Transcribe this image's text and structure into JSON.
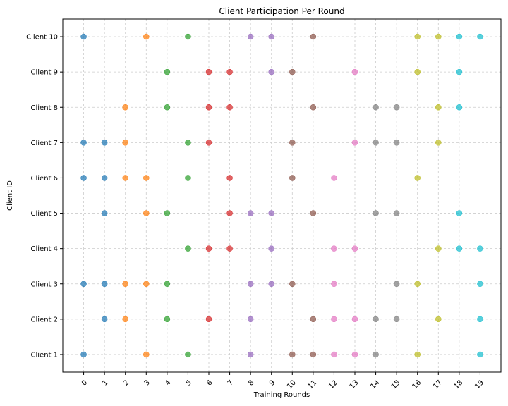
{
  "chart_data": {
    "type": "scatter",
    "title": "Client Participation Per Round",
    "xlabel": "Training Rounds",
    "ylabel": "Client ID",
    "x_ticks": [
      "0",
      "1",
      "2",
      "3",
      "4",
      "5",
      "6",
      "7",
      "8",
      "9",
      "10",
      "11",
      "12",
      "13",
      "14",
      "15",
      "16",
      "17",
      "18",
      "19"
    ],
    "y_ticks": [
      "Client 1",
      "Client 2",
      "Client 3",
      "Client 4",
      "Client 5",
      "Client 6",
      "Client 7",
      "Client 8",
      "Client 9",
      "Client 10"
    ],
    "xlim": [
      -1,
      20
    ],
    "ylim": [
      0.5,
      10.5
    ],
    "grid": true,
    "round_colors": [
      "#1f77b4",
      "#1f77b4",
      "#ff7f0e",
      "#ff7f0e",
      "#2ca02c",
      "#2ca02c",
      "#d62728",
      "#d62728",
      "#9467bd",
      "#9467bd",
      "#8c564b",
      "#8c564b",
      "#e377c2",
      "#e377c2",
      "#7f7f7f",
      "#7f7f7f",
      "#bcbd22",
      "#bcbd22",
      "#17becf",
      "#17becf"
    ],
    "participation": [
      {
        "client": 10,
        "rounds": [
          0,
          3,
          5,
          8,
          9,
          11,
          16,
          17,
          18,
          19
        ]
      },
      {
        "client": 9,
        "rounds": [
          4,
          6,
          7,
          9,
          10,
          13,
          16,
          18
        ]
      },
      {
        "client": 8,
        "rounds": [
          2,
          4,
          6,
          7,
          11,
          14,
          15,
          17,
          18
        ]
      },
      {
        "client": 7,
        "rounds": [
          0,
          1,
          2,
          5,
          6,
          10,
          13,
          14,
          15,
          17
        ]
      },
      {
        "client": 6,
        "rounds": [
          0,
          1,
          2,
          3,
          5,
          7,
          10,
          12,
          16
        ]
      },
      {
        "client": 5,
        "rounds": [
          1,
          3,
          4,
          7,
          8,
          9,
          11,
          14,
          15,
          18
        ]
      },
      {
        "client": 4,
        "rounds": [
          5,
          6,
          7,
          9,
          12,
          13,
          17,
          18,
          19
        ]
      },
      {
        "client": 3,
        "rounds": [
          0,
          1,
          2,
          3,
          4,
          8,
          9,
          10,
          12,
          15,
          16,
          19
        ]
      },
      {
        "client": 2,
        "rounds": [
          1,
          2,
          4,
          6,
          8,
          11,
          12,
          13,
          14,
          15,
          17,
          19
        ]
      },
      {
        "client": 1,
        "rounds": [
          0,
          3,
          5,
          8,
          10,
          11,
          12,
          13,
          14,
          16,
          19
        ]
      }
    ]
  }
}
